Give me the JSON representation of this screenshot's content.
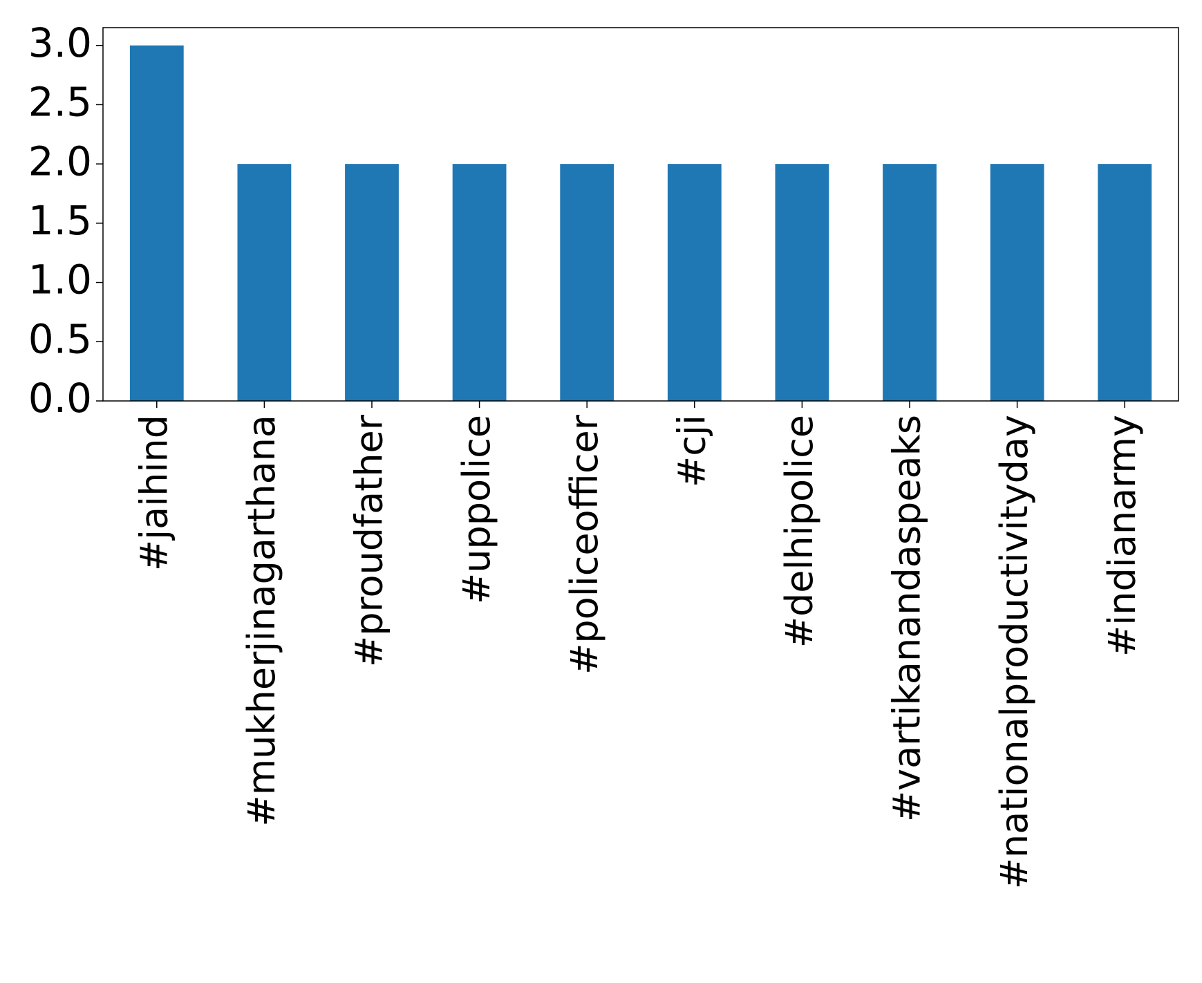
{
  "chart_data": {
    "type": "bar",
    "categories": [
      "#jaihind",
      "#mukherjinagarthana",
      "#proudfather",
      "#uppolice",
      "#policeofficer",
      "#cji",
      "#delhipolice",
      "#vartikanandaspeaks",
      "#nationalproductivityday",
      "#indianarmy"
    ],
    "values": [
      3,
      2,
      2,
      2,
      2,
      2,
      2,
      2,
      2,
      2
    ],
    "color": "#1f77b4",
    "ylim": [
      0,
      3.15
    ],
    "yticks": [
      {
        "value": 0,
        "label": "0.0"
      },
      0.5,
      {
        "value": 1,
        "label": "1.0"
      },
      1.5,
      {
        "value": 2,
        "label": "2.0"
      },
      2.5,
      {
        "value": 3,
        "label": "3.0"
      }
    ],
    "grid": false
  }
}
